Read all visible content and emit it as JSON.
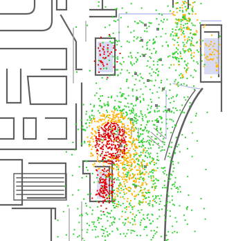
{
  "map": {
    "kind": "floor-plan-heatmap",
    "colors": {
      "background": "#ffffff",
      "walls": "#5f5f5f",
      "light_walls": "#a7a7a7",
      "zone_outline": "#aab0e6",
      "zone_fill": "#c9ccee",
      "column": "#7c7c7c",
      "density_low": "#2fd12f",
      "density_mid": "#ffb000",
      "density_high": "#e20000"
    },
    "legend": null,
    "labels": []
  }
}
